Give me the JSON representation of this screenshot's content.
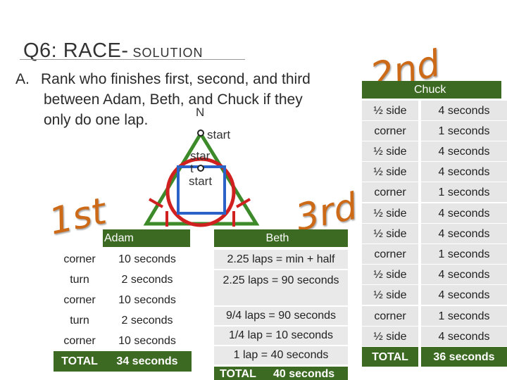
{
  "title": {
    "main": "Q6: RACE-",
    "sub": " SOLUTION"
  },
  "question": {
    "label": "A.",
    "lines": [
      "Rank who finishes first, second, and third",
      "between Adam, Beth, and Chuck if they",
      "only do one lap."
    ]
  },
  "diagram": {
    "north": "N",
    "start_top": "start",
    "start_mid_top": "star",
    "start_mid_t": "t",
    "start_bottom": "start"
  },
  "places": {
    "first": "1st",
    "second": "2nd",
    "third": "3rd"
  },
  "adam": {
    "header": "Adam",
    "rows": [
      {
        "a": "corner",
        "b": "10 seconds"
      },
      {
        "a": "turn",
        "b": "2 seconds"
      },
      {
        "a": "corner",
        "b": "10 seconds"
      },
      {
        "a": "turn",
        "b": "2 seconds"
      },
      {
        "a": "corner",
        "b": "10 seconds"
      }
    ],
    "total_label": "TOTAL",
    "total_value": "34 seconds"
  },
  "beth": {
    "header": "Beth",
    "lines": [
      "2.25 laps = min + half",
      "2.25 laps = 90 seconds",
      "9/4 laps = 90 seconds",
      "1/4 lap = 10 seconds",
      "1 lap = 40 seconds"
    ],
    "total_label": "TOTAL",
    "total_value": "40 seconds"
  },
  "chuck": {
    "header": "Chuck",
    "rows": [
      {
        "a": "½ side",
        "b": "4 seconds"
      },
      {
        "a": "corner",
        "b": "1 seconds"
      },
      {
        "a": "½ side",
        "b": "4 seconds"
      },
      {
        "a": "½ side",
        "b": "4 seconds"
      },
      {
        "a": "corner",
        "b": "1 seconds"
      },
      {
        "a": "½ side",
        "b": "4 seconds"
      },
      {
        "a": "½ side",
        "b": "4 seconds"
      },
      {
        "a": "corner",
        "b": "1 seconds"
      },
      {
        "a": "½ side",
        "b": "4 seconds"
      },
      {
        "a": "½ side",
        "b": "4 seconds"
      },
      {
        "a": "corner",
        "b": "1 seconds"
      },
      {
        "a": "½ side",
        "b": "4 seconds"
      }
    ],
    "total_label": "TOTAL",
    "total_value": "36 seconds"
  },
  "colors": {
    "accent_green": "#3d6a23",
    "place_orange": "#cc6a18",
    "circle_red": "#d02020",
    "square_blue": "#2a62c8"
  }
}
